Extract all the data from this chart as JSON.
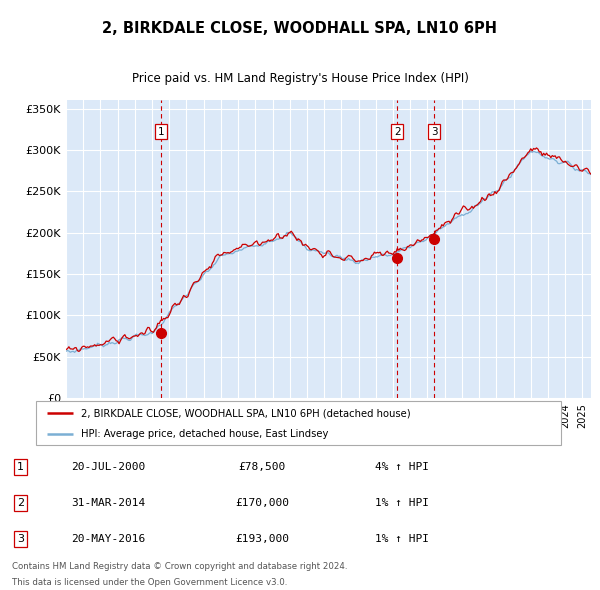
{
  "title": "2, BIRKDALE CLOSE, WOODHALL SPA, LN10 6PH",
  "subtitle": "Price paid vs. HM Land Registry's House Price Index (HPI)",
  "legend_line1": "2, BIRKDALE CLOSE, WOODHALL SPA, LN10 6PH (detached house)",
  "legend_line2": "HPI: Average price, detached house, East Lindsey",
  "transactions": [
    {
      "num": 1,
      "date": "20-JUL-2000",
      "date_val": 2000.54,
      "price": 78500,
      "hpi_pct": "4% ↑ HPI"
    },
    {
      "num": 2,
      "date": "31-MAR-2014",
      "date_val": 2014.25,
      "price": 170000,
      "hpi_pct": "1% ↑ HPI"
    },
    {
      "num": 3,
      "date": "20-MAY-2016",
      "date_val": 2016.38,
      "price": 193000,
      "hpi_pct": "1% ↑ HPI"
    }
  ],
  "footnote1": "Contains HM Land Registry data © Crown copyright and database right 2024.",
  "footnote2": "This data is licensed under the Open Government Licence v3.0.",
  "bg_color": "#dce9f8",
  "line_color_red": "#cc0000",
  "line_color_blue": "#7bafd4",
  "grid_color": "#ffffff",
  "dashed_color": "#cc0000",
  "ylim": [
    0,
    360000
  ],
  "xlim_start": 1995.0,
  "xlim_end": 2025.5,
  "yticks": [
    0,
    50000,
    100000,
    150000,
    200000,
    250000,
    300000,
    350000
  ],
  "ylabels": [
    "£0",
    "£50K",
    "£100K",
    "£150K",
    "£200K",
    "£250K",
    "£300K",
    "£350K"
  ]
}
